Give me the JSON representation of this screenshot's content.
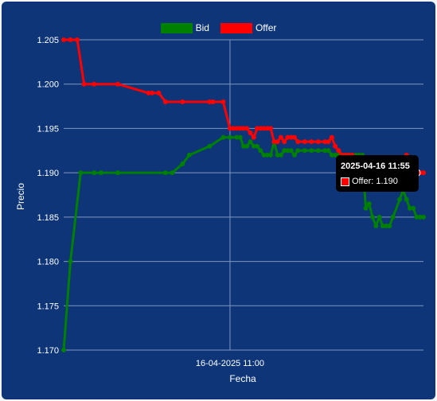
{
  "chart_data": {
    "type": "line",
    "xlabel": "Fecha",
    "ylabel": "Precio",
    "x_tick_labels": [
      "16-04-2025 11:00"
    ],
    "ylim": [
      1.17,
      1.205
    ],
    "y_ticks": [
      "1.205",
      "1.200",
      "1.195",
      "1.190",
      "1.185",
      "1.180",
      "1.175",
      "1.170"
    ],
    "legend_position": "top",
    "grid": true,
    "colors": {
      "Bid": "#008000",
      "Offer": "#ff0000",
      "background": "#0d3577"
    },
    "series": [
      {
        "name": "Bid",
        "x": [
          "10:11",
          "10:13",
          "10:16",
          "10:20",
          "10:22",
          "10:27",
          "10:41",
          "10:43",
          "10:46",
          "10:48",
          "10:54",
          "10:58",
          "11:00",
          "11:02",
          "11:03",
          "11:04",
          "11:05",
          "11:06",
          "11:07",
          "11:08",
          "11:09",
          "11:10",
          "11:11",
          "11:12",
          "11:13",
          "11:14",
          "11:15",
          "11:16",
          "11:17",
          "11:18",
          "11:19",
          "11:20",
          "11:22",
          "11:24",
          "11:26",
          "11:28",
          "11:29",
          "11:30",
          "11:31",
          "11:32",
          "11:33",
          "11:34",
          "11:35",
          "11:36",
          "11:37",
          "11:38",
          "11:39",
          "11:40",
          "11:41",
          "11:42",
          "11:43",
          "11:44",
          "11:45",
          "11:46",
          "11:47",
          "11:48",
          "11:50",
          "11:51",
          "11:52",
          "11:53",
          "11:54",
          "11:55",
          "11:56",
          "11:57"
        ],
        "values": [
          1.17,
          1.18,
          1.19,
          1.19,
          1.19,
          1.19,
          1.19,
          1.19,
          1.191,
          1.192,
          1.193,
          1.194,
          1.194,
          1.194,
          1.194,
          1.193,
          1.193,
          1.1935,
          1.193,
          1.193,
          1.1925,
          1.192,
          1.192,
          1.192,
          1.1935,
          1.192,
          1.192,
          1.1925,
          1.1925,
          1.1925,
          1.192,
          1.1925,
          1.1925,
          1.1925,
          1.1925,
          1.1925,
          1.1925,
          1.192,
          1.192,
          1.192,
          1.192,
          1.192,
          1.192,
          1.192,
          1.192,
          1.192,
          1.192,
          1.186,
          1.1865,
          1.185,
          1.184,
          1.185,
          1.184,
          1.184,
          1.184,
          1.185,
          1.187,
          1.188,
          1.187,
          1.186,
          1.186,
          1.185,
          1.185,
          1.185
        ]
      },
      {
        "name": "Offer",
        "x": [
          "10:11",
          "10:13",
          "10:15",
          "10:17",
          "10:20",
          "10:27",
          "10:36",
          "10:37",
          "10:39",
          "10:41",
          "10:46",
          "10:54",
          "10:55",
          "10:58",
          "11:00",
          "11:01",
          "11:02",
          "11:03",
          "11:04",
          "11:05",
          "11:06",
          "11:07",
          "11:08",
          "11:09",
          "11:10",
          "11:11",
          "11:12",
          "11:13",
          "11:14",
          "11:15",
          "11:16",
          "11:17",
          "11:18",
          "11:19",
          "11:20",
          "11:22",
          "11:24",
          "11:26",
          "11:28",
          "11:29",
          "11:30",
          "11:31",
          "11:32",
          "11:33",
          "11:34",
          "11:35",
          "11:36",
          "11:37",
          "11:38",
          "11:39",
          "11:40",
          "11:41",
          "11:42",
          "11:43",
          "11:44",
          "11:45",
          "11:46",
          "11:47",
          "11:48",
          "11:50",
          "11:51",
          "11:52",
          "11:53",
          "11:54",
          "11:55",
          "11:56",
          "11:57"
        ],
        "values": [
          1.205,
          1.205,
          1.205,
          1.2,
          1.2,
          1.2,
          1.199,
          1.199,
          1.199,
          1.198,
          1.198,
          1.198,
          1.198,
          1.198,
          1.195,
          1.195,
          1.195,
          1.195,
          1.195,
          1.195,
          1.1945,
          1.194,
          1.195,
          1.195,
          1.195,
          1.195,
          1.195,
          1.1935,
          1.1935,
          1.194,
          1.1935,
          1.194,
          1.194,
          1.194,
          1.1935,
          1.1935,
          1.1935,
          1.1935,
          1.1935,
          1.1935,
          1.194,
          1.193,
          1.1925,
          1.192,
          1.192,
          1.192,
          1.192,
          1.191,
          1.19,
          1.19,
          1.19,
          1.19,
          1.19,
          1.19,
          1.19,
          1.19,
          1.19,
          1.19,
          1.19,
          1.19,
          1.19,
          1.192,
          1.19,
          1.19,
          1.19,
          1.19,
          1.19
        ]
      }
    ],
    "tooltip": {
      "title": "2025-04-16 11:55",
      "label": "Offer: 1.190"
    }
  }
}
